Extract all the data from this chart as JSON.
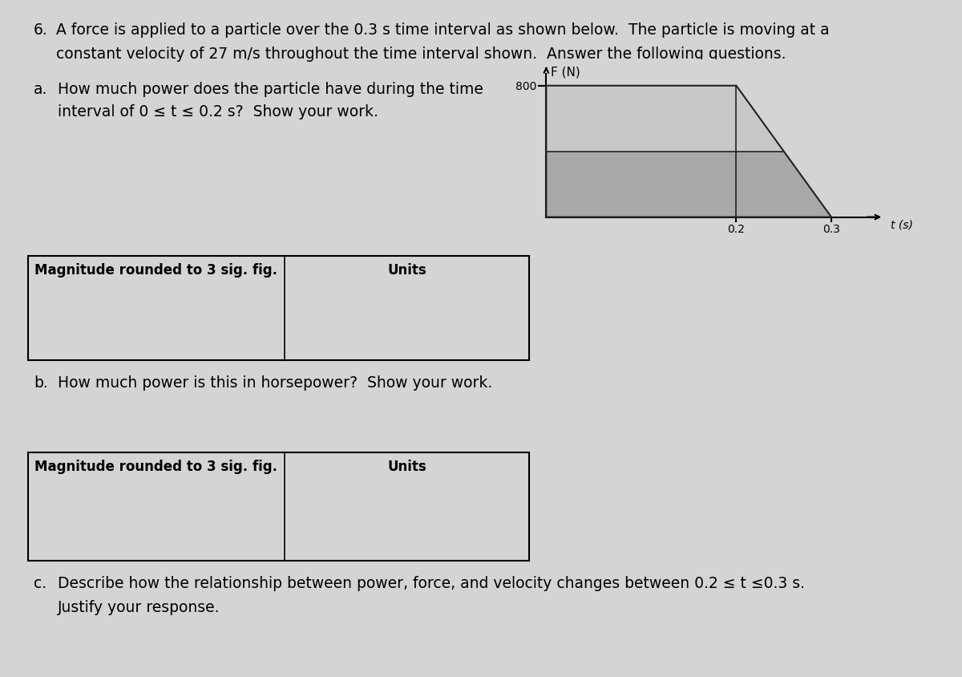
{
  "bg_color": "#d4d4d4",
  "title_number": "6.",
  "title_text": "A force is applied to a particle over the 0.3 s time interval as shown below.  The particle is moving at a",
  "title_text2": "constant velocity of 27 m/s throughout the time interval shown.  Answer the following questions.",
  "q_a_label": "a.",
  "q_a_text": "How much power does the particle have during the time",
  "q_a_text2": "interval of 0 ≤ t ≤ 0.2 s?  Show your work.",
  "q_b_label": "b.",
  "q_b_text": "How much power is this in horsepower?  Show your work.",
  "q_c_label": "c.",
  "q_c_text": "Describe how the relationship between power, force, and velocity changes between 0.2 ≤ t ≤0.3 s.",
  "q_c_text2": "Justify your response.",
  "box_a_left": "Magnitude rounded to 3 sig. fig.",
  "box_a_right": "Units",
  "box_b_left": "Magnitude rounded to 3 sig. fig.",
  "box_b_right": "Units",
  "graph_ylabel": "F (N)",
  "graph_xlabel": "t (s)",
  "graph_ytick": 800,
  "graph_xtick1": 0.2,
  "graph_xtick2": 0.3,
  "trap_color_upper": "#c8c8c8",
  "trap_color_lower": "#a8a8a8",
  "trap_edge_color": "#222222",
  "graph_bg": "#d4d4d4",
  "font_size_main": 13.5,
  "font_size_graph": 10,
  "font_size_box": 12
}
